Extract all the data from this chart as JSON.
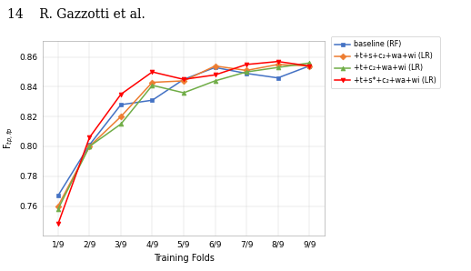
{
  "x_labels": [
    "1/9",
    "2/9",
    "3/9",
    "4/9",
    "5/9",
    "6/9",
    "7/9",
    "8/9",
    "9/9"
  ],
  "x_values": [
    1,
    2,
    3,
    4,
    5,
    6,
    7,
    8,
    9
  ],
  "series": [
    {
      "label": "baseline (RF)",
      "color": "#4472C4",
      "marker": "s",
      "values": [
        0.767,
        0.801,
        0.828,
        0.831,
        0.845,
        0.853,
        0.849,
        0.846,
        0.854
      ]
    },
    {
      "label": "+t+s+c₂+wa+wi (LR)",
      "color": "#ED7D31",
      "marker": "D",
      "values": [
        0.76,
        0.8,
        0.82,
        0.843,
        0.844,
        0.854,
        0.851,
        0.855,
        0.854
      ]
    },
    {
      "label": "+t+c₂+wa+wi (LR)",
      "color": "#70AD47",
      "marker": "^",
      "values": [
        0.758,
        0.8,
        0.815,
        0.841,
        0.836,
        0.844,
        0.85,
        0.853,
        0.856
      ]
    },
    {
      "label": "+t+s*+c₂+wa+wi (LR)",
      "color": "#FF0000",
      "marker": "v",
      "values": [
        0.748,
        0.806,
        0.835,
        0.85,
        0.845,
        0.848,
        0.855,
        0.857,
        0.854
      ]
    }
  ],
  "xlabel": "Training Folds",
  "ylabel": "F$_{tp,fp}$",
  "ylim": [
    0.74,
    0.871
  ],
  "yticks": [
    0.76,
    0.78,
    0.8,
    0.82,
    0.84,
    0.86
  ],
  "header": "14    R. Gazzotti et al.",
  "header_fontsize": 10,
  "legend_fontsize": 5.8,
  "axis_label_fontsize": 7,
  "tick_fontsize": 6.5,
  "linewidth": 1.1,
  "markersize": 3.5,
  "background_color": "#ffffff"
}
